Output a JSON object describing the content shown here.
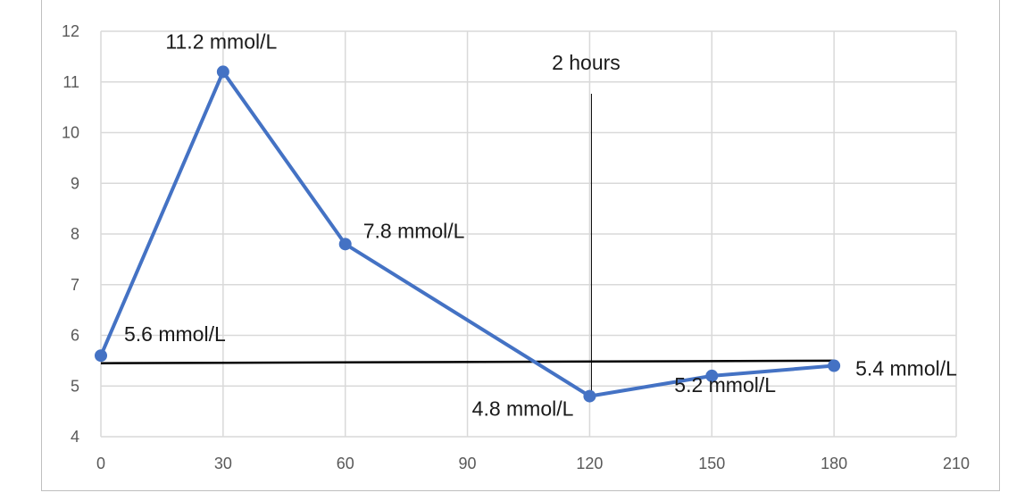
{
  "chart_data": {
    "type": "line",
    "title": "",
    "xlabel": "",
    "ylabel": "",
    "xlim": [
      0,
      210
    ],
    "ylim": [
      4,
      12
    ],
    "x_ticks": [
      0,
      30,
      60,
      90,
      120,
      150,
      180,
      210
    ],
    "y_ticks": [
      4,
      5,
      6,
      7,
      8,
      9,
      10,
      11,
      12
    ],
    "grid": true,
    "legend": "none",
    "series": [
      {
        "x": [
          0,
          30,
          60,
          120,
          150,
          180
        ],
        "y": [
          5.6,
          11.2,
          7.8,
          4.8,
          5.2,
          5.4
        ],
        "color": "#4472c4"
      }
    ],
    "data_labels": [
      {
        "x": 0,
        "y": 5.6,
        "text": "5.6 mmol/L"
      },
      {
        "x": 30,
        "y": 11.2,
        "text": "11.2 mmol/L"
      },
      {
        "x": 60,
        "y": 7.8,
        "text": "7.8 mmol/L"
      },
      {
        "x": 120,
        "y": 4.8,
        "text": "4.8 mmol/L"
      },
      {
        "x": 150,
        "y": 5.2,
        "text": "5.2 mmol/L"
      },
      {
        "x": 180,
        "y": 5.4,
        "text": "5.4 mmol/L"
      }
    ],
    "annotations": {
      "time_marker": {
        "x": 120,
        "label": "2 hours"
      },
      "baseline": {
        "x_start": 0,
        "x_end": 180,
        "y_start": 5.45,
        "y_end": 5.5
      }
    },
    "colors": {
      "series": "#4472c4",
      "grid": "#d9d9d9",
      "annotation": "#000000"
    }
  }
}
